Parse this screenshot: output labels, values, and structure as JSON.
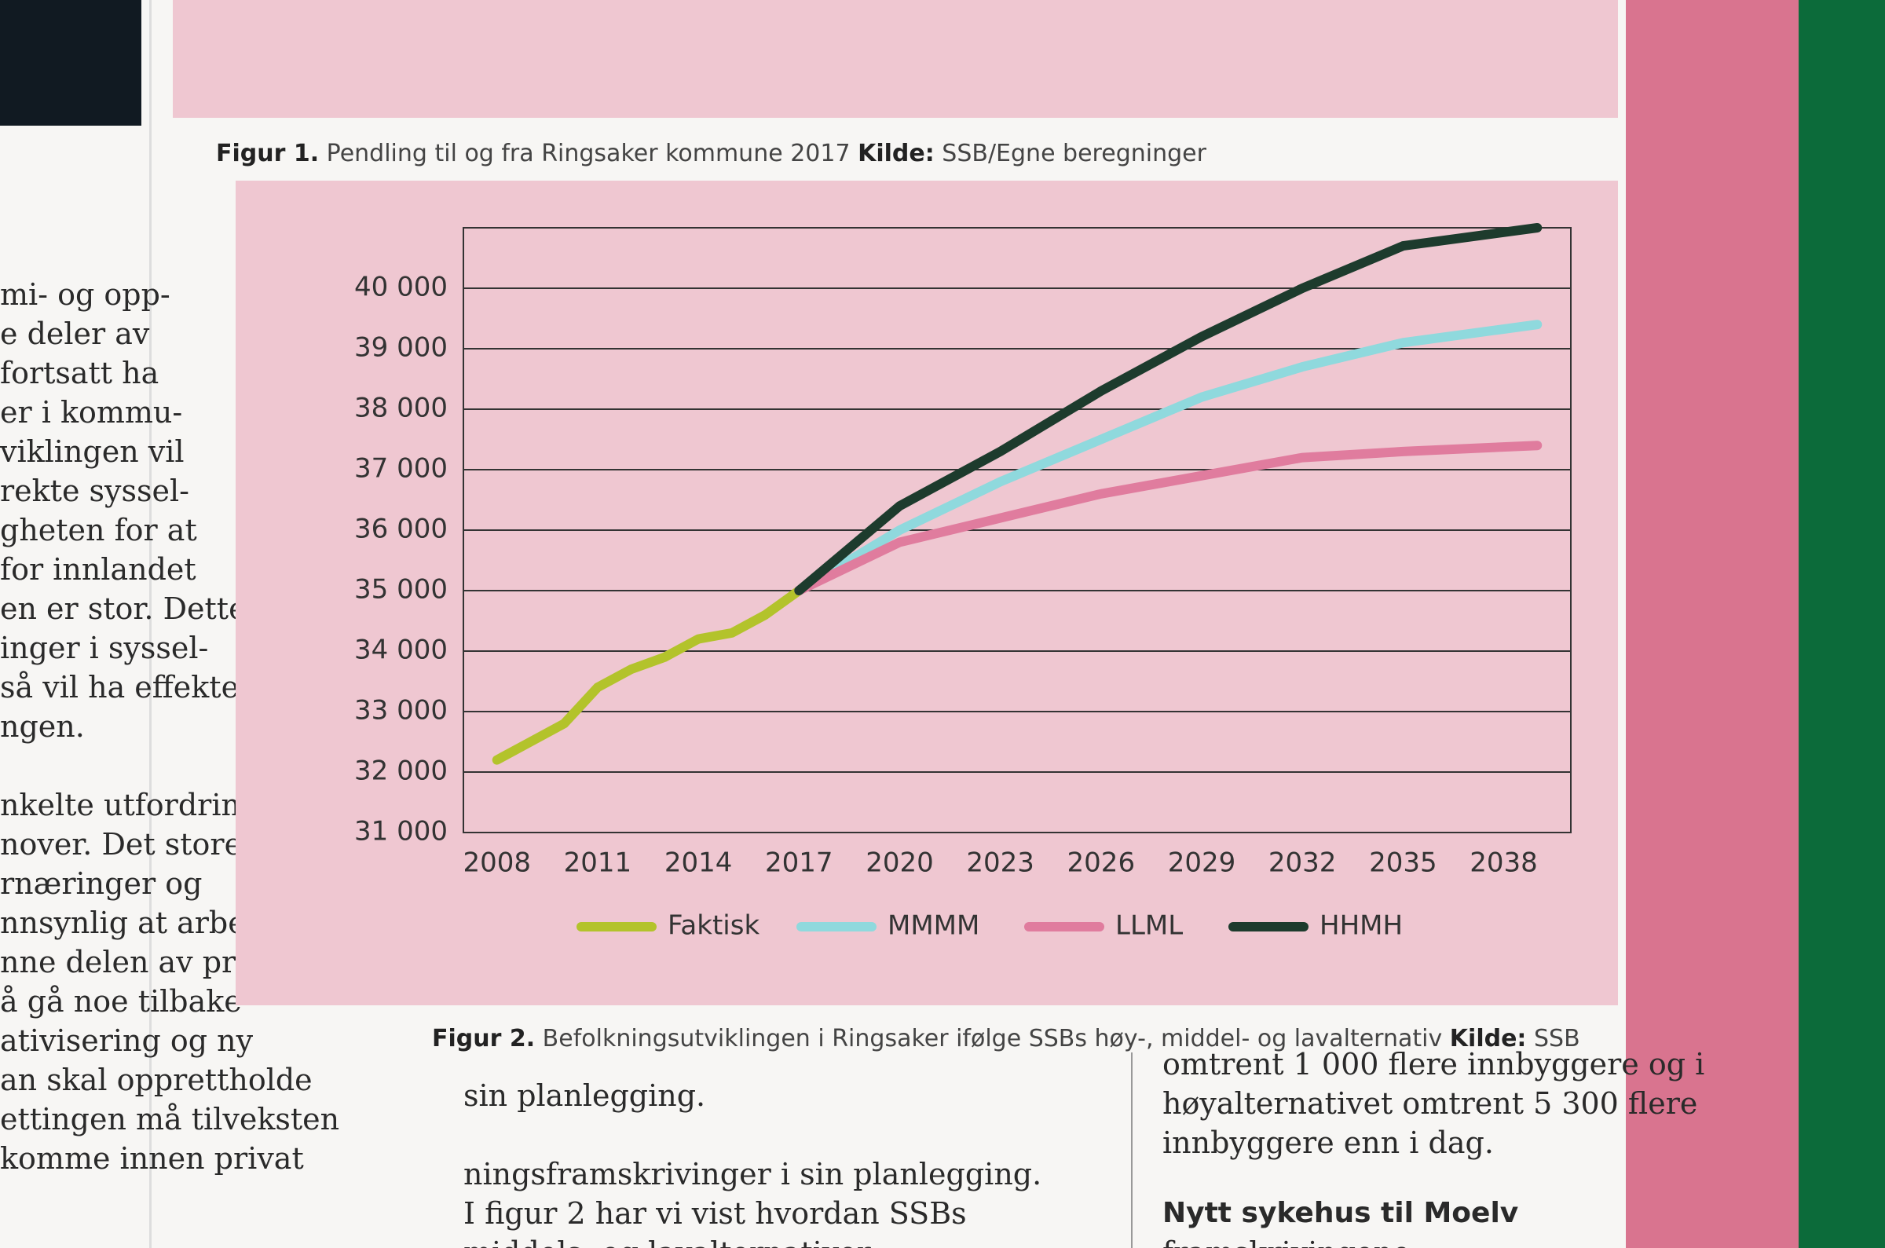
{
  "chart_data": {
    "type": "line",
    "xlim": [
      2007,
      2040
    ],
    "xticks": [
      2008,
      2011,
      2014,
      2017,
      2020,
      2023,
      2026,
      2029,
      2032,
      2035,
      2038
    ],
    "ylim": [
      31000,
      41000
    ],
    "yticks": [
      {
        "value": 31000,
        "label": "31 000"
      },
      {
        "value": 32000,
        "label": "32 000"
      },
      {
        "value": 33000,
        "label": "33 000"
      },
      {
        "value": 34000,
        "label": "34 000"
      },
      {
        "value": 35000,
        "label": "35 000"
      },
      {
        "value": 36000,
        "label": "36 000"
      },
      {
        "value": 37000,
        "label": "37 000"
      },
      {
        "value": 38000,
        "label": "38 000"
      },
      {
        "value": 39000,
        "label": "39 000"
      },
      {
        "value": 40000,
        "label": "40 000"
      }
    ],
    "grid": true,
    "series": [
      {
        "name": "Faktisk",
        "color": "#b3c32b",
        "x": [
          2008,
          2009,
          2010,
          2011,
          2012,
          2013,
          2014,
          2015,
          2016,
          2017
        ],
        "values": [
          32200,
          32500,
          32800,
          33400,
          33700,
          33900,
          34200,
          34300,
          34600,
          35000
        ]
      },
      {
        "name": "MMMM",
        "color": "#8fd9dd",
        "x": [
          2017,
          2020,
          2023,
          2026,
          2029,
          2032,
          2035,
          2039
        ],
        "values": [
          35000,
          36000,
          36800,
          37500,
          38200,
          38700,
          39100,
          39400
        ]
      },
      {
        "name": "LLML",
        "color": "#e07c9e",
        "x": [
          2017,
          2020,
          2023,
          2026,
          2029,
          2032,
          2035,
          2039
        ],
        "values": [
          35000,
          35800,
          36200,
          36600,
          36900,
          37200,
          37300,
          37400
        ]
      },
      {
        "name": "HHMH",
        "color": "#1d3b2d",
        "x": [
          2017,
          2020,
          2023,
          2026,
          2029,
          2032,
          2035,
          2039
        ],
        "values": [
          35000,
          36400,
          37300,
          38300,
          39200,
          40000,
          40700,
          41000
        ]
      }
    ]
  },
  "figure1_caption": {
    "label": "Figur 1.",
    "text": "Pendling til og fra Ringsaker kommune 2017",
    "source_label": "Kilde:",
    "source": "SSB/Egne beregninger"
  },
  "figure2_caption": {
    "label": "Figur 2.",
    "text": "Befolkningsutviklingen i Ringsaker ifølge SSBs høy-, middel- og lavalternativ",
    "source_label": "Kilde:",
    "source": "SSB"
  },
  "left_column": [
    "mi- og opp-",
    "e deler av",
    "fortsatt ha",
    "er i kommu-",
    "viklingen vil",
    "rekte syssel-",
    "gheten for at",
    "for innlandet",
    "en er stor. Dette",
    "inger i syssel-",
    "så vil ha effekter",
    "ngen.",
    "",
    "nkelte utfordrin-",
    "nover. Det store",
    "rnæringer og",
    "nnsynlig at arbeids-",
    "nne delen av privat",
    "å gå noe tilbake",
    "ativisering og ny",
    "an skal opprettholde",
    "ettingen må tilveksten",
    "komme innen privat"
  ],
  "middle_column": [
    "sin planlegging.",
    "",
    "ningsframskrivinger i sin planlegging.",
    "I figur 2 har vi vist hvordan SSBs",
    "middels- og lavalternativer"
  ],
  "right_column": [
    "omtrent 1 000 flere innbyggere og i",
    "høyalternativet omtrent 5 300 flere",
    "innbyggere enn i dag."
  ],
  "right_heading": "Nytt sykehus til Moelv",
  "right_after_heading": "framskrivingene"
}
